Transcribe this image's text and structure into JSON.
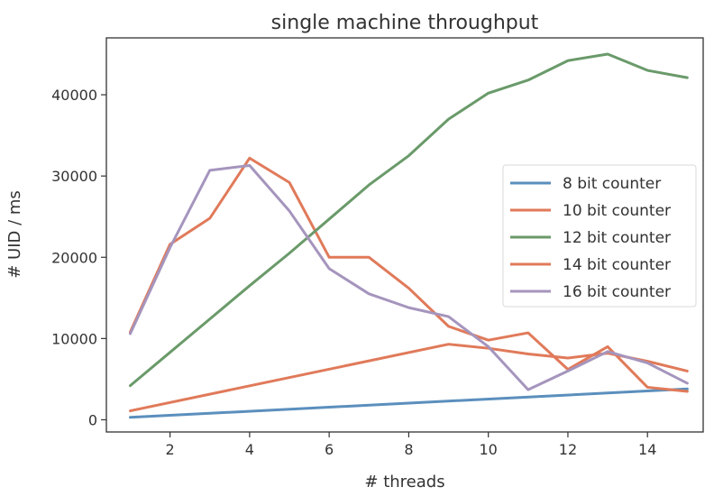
{
  "chart_data": {
    "type": "line",
    "title": "single machine throughput",
    "xlabel": "# threads",
    "ylabel": "# UID / ms",
    "xlim": [
      0.4,
      15.4
    ],
    "ylim": [
      -1500,
      47000
    ],
    "xticks": [
      2,
      4,
      6,
      8,
      10,
      12,
      14
    ],
    "yticks": [
      0,
      10000,
      20000,
      30000,
      40000
    ],
    "grid": false,
    "legend_position": "center-right",
    "series": [
      {
        "name": "8 bit counter",
        "color": "#5b8fbd",
        "x": [
          1,
          15
        ],
        "y": [
          300,
          3800
        ]
      },
      {
        "name": "10 bit counter",
        "color": "#e07a5a",
        "x": [
          1,
          2,
          3,
          4,
          5,
          6,
          7,
          8,
          9,
          10,
          11,
          12,
          13,
          14,
          15
        ],
        "y": [
          10800,
          21600,
          24800,
          32200,
          29200,
          20000,
          20000,
          16200,
          11500,
          9800,
          10700,
          6200,
          9000,
          4000,
          3500
        ]
      },
      {
        "name": "12 bit counter",
        "color": "#6a9a6a",
        "x": [
          1,
          2,
          3,
          4,
          5,
          6,
          7,
          8,
          9,
          10,
          11,
          12,
          13,
          14,
          15
        ],
        "y": [
          4200,
          8300,
          12400,
          16500,
          20500,
          24700,
          28900,
          32500,
          37000,
          40200,
          41800,
          44200,
          45000,
          43000,
          42100
        ]
      },
      {
        "name": "14 bit counter",
        "color": "#e07a5a",
        "x": [
          1,
          9,
          10,
          11,
          12,
          13,
          14,
          15
        ],
        "y": [
          1100,
          9300,
          8800,
          8100,
          7600,
          8200,
          7200,
          6000
        ]
      },
      {
        "name": "16 bit counter",
        "color": "#a595bd",
        "x": [
          1,
          2,
          3,
          4,
          5,
          6,
          7,
          8,
          9,
          10,
          11,
          12,
          13,
          14,
          15
        ],
        "y": [
          10600,
          21200,
          30700,
          31300,
          25700,
          18600,
          15500,
          13800,
          12700,
          9000,
          3700,
          6000,
          8400,
          7000,
          4500
        ]
      }
    ]
  }
}
